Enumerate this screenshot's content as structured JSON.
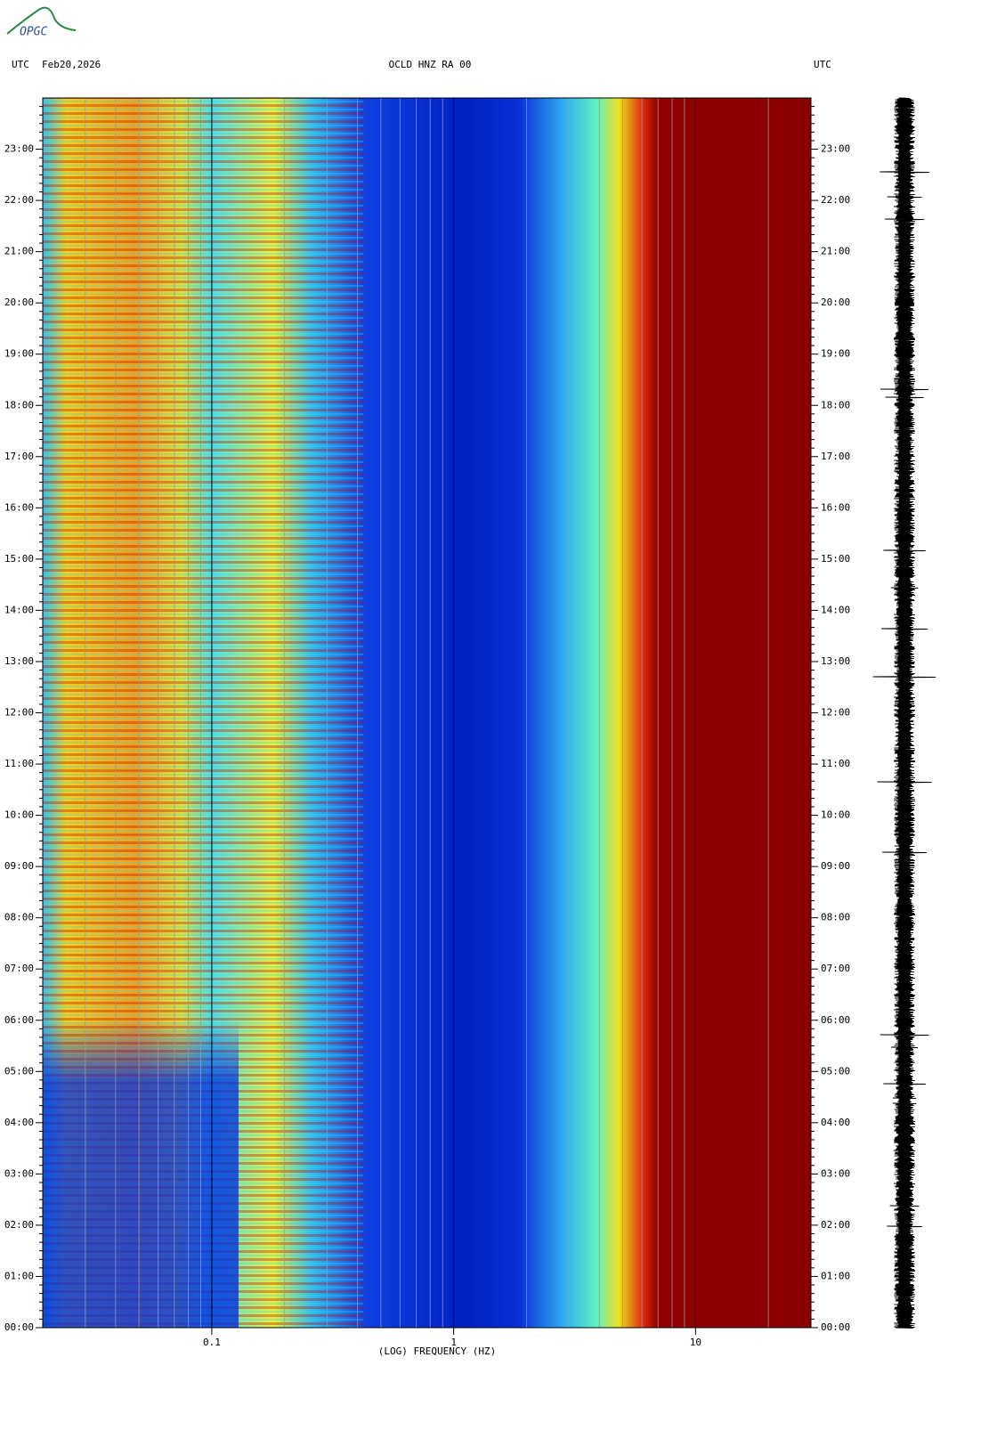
{
  "header": {
    "logo": "OPGC"
  },
  "chart_data": {
    "type": "spectrogram",
    "title": "OCLD HNZ RA 00",
    "left_label": "UTC",
    "date": "Feb20,2026",
    "right_label": "UTC",
    "xlabel": "(LOG) FREQUENCY (HZ)",
    "xscale": "log",
    "xlim": [
      0.02,
      30
    ],
    "xticks": [
      0.1,
      1,
      10
    ],
    "xminorticks": [
      0.03,
      0.04,
      0.05,
      0.06,
      0.07,
      0.08,
      0.09,
      0.2,
      0.3,
      0.4,
      0.5,
      0.6,
      0.7,
      0.8,
      0.9,
      2,
      3,
      4,
      5,
      6,
      7,
      8,
      9,
      20
    ],
    "ylim": [
      0,
      24
    ],
    "yticks": [
      {
        "value": 0,
        "label": "00:00"
      },
      {
        "value": 1,
        "label": "01:00"
      },
      {
        "value": 2,
        "label": "02:00"
      },
      {
        "value": 3,
        "label": "03:00"
      },
      {
        "value": 4,
        "label": "04:00"
      },
      {
        "value": 5,
        "label": "05:00"
      },
      {
        "value": 6,
        "label": "06:00"
      },
      {
        "value": 7,
        "label": "07:00"
      },
      {
        "value": 8,
        "label": "08:00"
      },
      {
        "value": 9,
        "label": "09:00"
      },
      {
        "value": 10,
        "label": "10:00"
      },
      {
        "value": 11,
        "label": "11:00"
      },
      {
        "value": 12,
        "label": "12:00"
      },
      {
        "value": 13,
        "label": "13:00"
      },
      {
        "value": 14,
        "label": "14:00"
      },
      {
        "value": 15,
        "label": "15:00"
      },
      {
        "value": 16,
        "label": "16:00"
      },
      {
        "value": 17,
        "label": "17:00"
      },
      {
        "value": 18,
        "label": "18:00"
      },
      {
        "value": 19,
        "label": "19:00"
      },
      {
        "value": 20,
        "label": "20:00"
      },
      {
        "value": 21,
        "label": "21:00"
      },
      {
        "value": 22,
        "label": "22:00"
      },
      {
        "value": 23,
        "label": "23:00"
      }
    ]
  }
}
